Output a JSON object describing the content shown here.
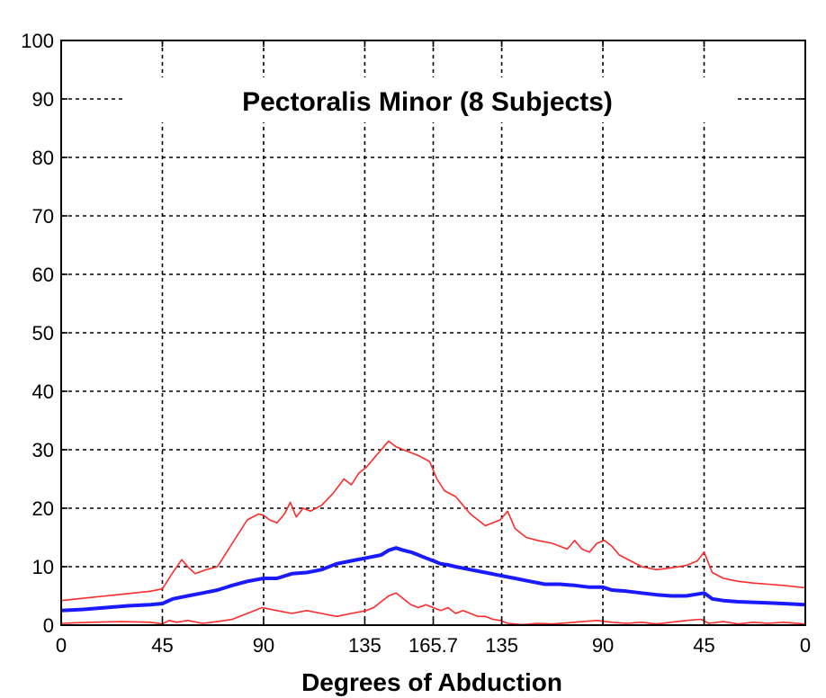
{
  "chart_data": {
    "type": "line",
    "title": "Pectoralis Minor (8 Subjects)",
    "xlabel": "Degrees of Abduction",
    "ylabel": "",
    "ylim": [
      0,
      100
    ],
    "xlim": [
      0,
      100
    ],
    "grid": true,
    "x_ticks": [
      {
        "pos": 0,
        "label": "0"
      },
      {
        "pos": 13.6,
        "label": "45"
      },
      {
        "pos": 27.2,
        "label": "90"
      },
      {
        "pos": 40.8,
        "label": "135"
      },
      {
        "pos": 50,
        "label": "165.7"
      },
      {
        "pos": 59.2,
        "label": "135"
      },
      {
        "pos": 72.8,
        "label": "90"
      },
      {
        "pos": 86.4,
        "label": "45"
      },
      {
        "pos": 100,
        "label": "0"
      }
    ],
    "y_ticks": [
      "0",
      "10",
      "20",
      "30",
      "40",
      "50",
      "60",
      "70",
      "80",
      "90",
      "100"
    ],
    "colors": {
      "mean": "#1a1aff",
      "bounds": "#ff2a2a"
    },
    "series": [
      {
        "role": "upper",
        "color": "#ff2a2a",
        "x": [
          0,
          3,
          6,
          9,
          12,
          13.6,
          15,
          16.2,
          17,
          18,
          19.5,
          21,
          23,
          25,
          26.5,
          27.2,
          28,
          29,
          30,
          30.8,
          31.6,
          32.5,
          33.5,
          35,
          36.5,
          38,
          39,
          40,
          41,
          42,
          43,
          44,
          45,
          46,
          47,
          48,
          49.5,
          50.5,
          51.5,
          53,
          55,
          57,
          59,
          60,
          61,
          62.5,
          64,
          66,
          68,
          69,
          70,
          71,
          72,
          73,
          74,
          75,
          76.5,
          78,
          80,
          82,
          84,
          85.5,
          86.4,
          87.5,
          89,
          91,
          93,
          95,
          97,
          100
        ],
        "y": [
          4.2,
          4.6,
          5.0,
          5.4,
          5.8,
          6.2,
          9.0,
          11.2,
          10.0,
          8.8,
          9.5,
          10.0,
          14.0,
          18.0,
          19.0,
          18.8,
          18.0,
          17.5,
          19.0,
          21.0,
          18.5,
          20.0,
          19.5,
          20.5,
          22.5,
          25.0,
          24.0,
          26.0,
          27.0,
          28.5,
          30.0,
          31.5,
          30.5,
          30.0,
          29.5,
          29.0,
          28.0,
          25.0,
          23.0,
          22.0,
          19.0,
          17.0,
          18.0,
          19.5,
          16.5,
          15.0,
          14.5,
          14.0,
          13.0,
          14.5,
          13.0,
          12.5,
          14.0,
          14.5,
          13.5,
          12.0,
          11.0,
          10.0,
          9.5,
          9.8,
          10.2,
          11.0,
          12.5,
          9.0,
          8.0,
          7.5,
          7.2,
          7.0,
          6.8,
          6.4
        ]
      },
      {
        "role": "mean",
        "color": "#1a1aff",
        "x": [
          0,
          3,
          6,
          9,
          12,
          13.6,
          15,
          17,
          19,
          21,
          23,
          25,
          27.2,
          29,
          31,
          33,
          35,
          37,
          39,
          41,
          43,
          44,
          45,
          46,
          47,
          48,
          49,
          50,
          51,
          52,
          53,
          55,
          57,
          59,
          61,
          63,
          65,
          67,
          69,
          71,
          72.8,
          74,
          76,
          78,
          80,
          82,
          84,
          86.4,
          87.5,
          89,
          91,
          93,
          95,
          97,
          100
        ],
        "y": [
          2.5,
          2.7,
          3.0,
          3.3,
          3.5,
          3.7,
          4.5,
          5.0,
          5.5,
          6.0,
          6.8,
          7.5,
          8.0,
          8.0,
          8.8,
          9.0,
          9.5,
          10.5,
          11.0,
          11.5,
          12.0,
          12.8,
          13.2,
          12.8,
          12.5,
          12.0,
          11.5,
          11.0,
          10.5,
          10.3,
          10.0,
          9.5,
          9.0,
          8.5,
          8.0,
          7.5,
          7.0,
          7.0,
          6.8,
          6.5,
          6.5,
          6.0,
          5.8,
          5.5,
          5.2,
          5.0,
          5.0,
          5.5,
          4.5,
          4.2,
          4.0,
          3.9,
          3.8,
          3.7,
          3.5
        ]
      },
      {
        "role": "lower",
        "color": "#ff2a2a",
        "x": [
          0,
          4,
          8,
          12,
          13.6,
          14.5,
          15.5,
          17,
          19,
          21,
          23,
          25,
          27,
          29,
          31,
          33,
          35,
          37,
          39,
          41,
          42,
          43,
          44,
          45,
          46,
          47,
          48,
          49,
          50,
          51,
          52,
          53,
          54,
          55,
          56,
          57,
          58,
          59,
          60,
          62,
          64,
          66,
          68,
          70,
          72,
          74,
          76,
          78,
          80,
          82,
          84,
          86,
          87,
          89,
          91,
          93,
          95,
          97,
          100
        ],
        "y": [
          0.3,
          0.5,
          0.6,
          0.5,
          0.2,
          0.8,
          0.5,
          0.8,
          0.3,
          0.6,
          1.0,
          2.0,
          3.0,
          2.5,
          2.0,
          2.5,
          2.0,
          1.5,
          2.0,
          2.5,
          3.0,
          4.0,
          5.0,
          5.5,
          4.5,
          3.5,
          3.0,
          3.5,
          3.0,
          2.5,
          3.0,
          2.0,
          2.5,
          2.0,
          1.5,
          1.5,
          1.0,
          0.8,
          0.3,
          0.1,
          0.3,
          0.2,
          0.4,
          0.6,
          0.8,
          0.5,
          0.3,
          0.5,
          0.2,
          0.5,
          0.8,
          1.0,
          0.3,
          0.6,
          0.2,
          0.5,
          0.3,
          0.5,
          0.2
        ]
      }
    ]
  }
}
